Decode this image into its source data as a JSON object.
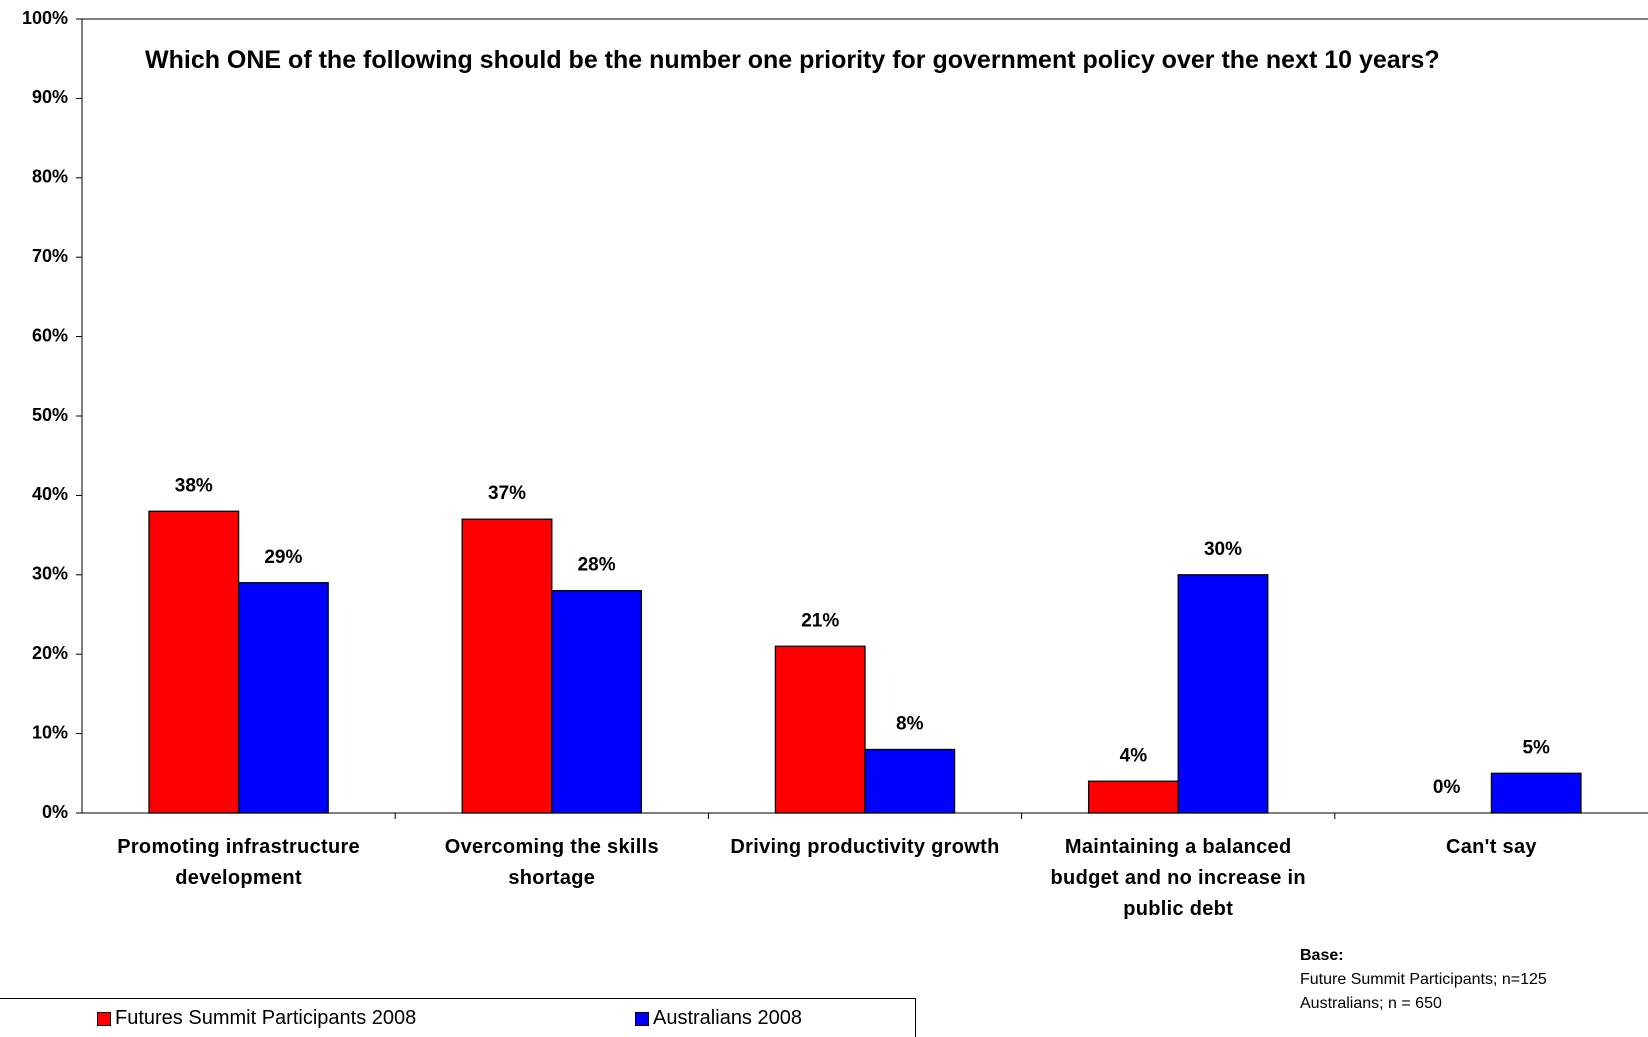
{
  "chart_data": {
    "type": "grouped_bar",
    "title": "Which ONE of the following should be the number one priority for government policy over the next 10 years?",
    "categories": [
      "Promoting infrastructure development",
      "Overcoming the skills shortage",
      "Driving productivity growth",
      "Maintaining a balanced budget and no increase in public debt",
      "Can't say"
    ],
    "series": [
      {
        "name": "Futures Summit Participants 2008",
        "color": "#ff0000",
        "values": [
          38,
          37,
          21,
          4,
          0
        ],
        "value_labels": [
          "38%",
          "37%",
          "21%",
          "4%",
          "0%"
        ]
      },
      {
        "name": "Australians 2008",
        "color": "#0000ff",
        "values": [
          29,
          28,
          8,
          30,
          5
        ],
        "value_labels": [
          "29%",
          "28%",
          "8%",
          "30%",
          "5%"
        ]
      }
    ],
    "ylim": [
      0,
      100
    ],
    "yticks": [
      {
        "value": 0,
        "label": "0%"
      },
      {
        "value": 10,
        "label": "10%"
      },
      {
        "value": 20,
        "label": "20%"
      },
      {
        "value": 30,
        "label": "30%"
      },
      {
        "value": 40,
        "label": "40%"
      },
      {
        "value": 50,
        "label": "50%"
      },
      {
        "value": 60,
        "label": "60%"
      },
      {
        "value": 70,
        "label": "70%"
      },
      {
        "value": 80,
        "label": "80%"
      },
      {
        "value": 90,
        "label": "90%"
      },
      {
        "value": 100,
        "label": "100%"
      }
    ],
    "grid": false,
    "legend": "bottom-left",
    "note": {
      "title": "Base:",
      "lines": [
        "Future Summit Participants; n=125",
        "Australians; n = 650"
      ]
    }
  }
}
